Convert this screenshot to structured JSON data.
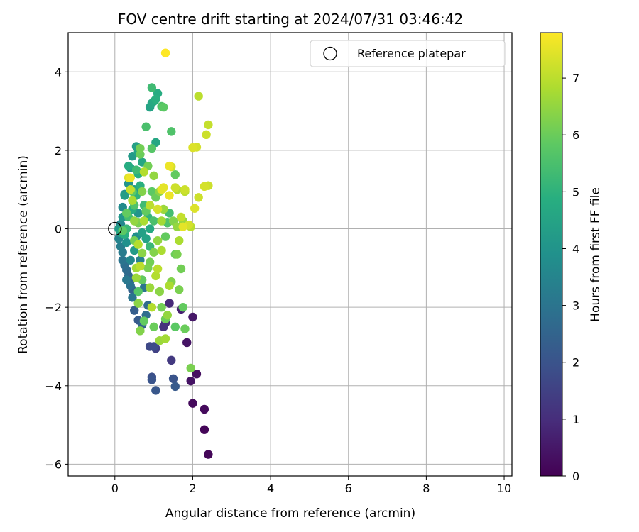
{
  "chart_data": {
    "type": "scatter",
    "title": "FOV centre drift starting at 2024/07/31 03:46:42",
    "xlabel": "Angular distance from reference (arcmin)",
    "ylabel": "Rotation from reference (arcmin)",
    "colorbar_label": "Hours from first FF file",
    "xlim": [
      -1.2,
      10.2
    ],
    "ylim": [
      -6.3,
      5.0
    ],
    "clim": [
      0,
      7.8
    ],
    "xticks": [
      0,
      2,
      4,
      6,
      8,
      10
    ],
    "yticks": [
      -6,
      -4,
      -2,
      0,
      2,
      4
    ],
    "cticks": [
      0,
      1,
      2,
      3,
      4,
      5,
      6,
      7
    ],
    "grid": true,
    "colormap": "viridis",
    "legend": {
      "position": "top-right",
      "label": "Reference platepar"
    },
    "reference": {
      "x": 0,
      "y": 0
    },
    "points": [
      {
        "x": 2.4,
        "y": -5.75,
        "t": 0.1
      },
      {
        "x": 2.3,
        "y": -5.12,
        "t": 0.1
      },
      {
        "x": 2.3,
        "y": -4.6,
        "t": 0.2
      },
      {
        "x": 2.0,
        "y": -4.45,
        "t": 0.2
      },
      {
        "x": 2.1,
        "y": -3.7,
        "t": 0.3
      },
      {
        "x": 1.95,
        "y": -3.88,
        "t": 0.4
      },
      {
        "x": 1.85,
        "y": -2.9,
        "t": 0.4
      },
      {
        "x": 2.0,
        "y": -2.25,
        "t": 0.5
      },
      {
        "x": 1.7,
        "y": -2.05,
        "t": 0.7
      },
      {
        "x": 1.4,
        "y": -1.9,
        "t": 0.9
      },
      {
        "x": 1.3,
        "y": -2.4,
        "t": 1.0
      },
      {
        "x": 1.25,
        "y": -2.5,
        "t": 1.1
      },
      {
        "x": 1.45,
        "y": -3.35,
        "t": 1.3
      },
      {
        "x": 1.05,
        "y": -3.05,
        "t": 1.5
      },
      {
        "x": 0.9,
        "y": -3.0,
        "t": 1.7
      },
      {
        "x": 1.0,
        "y": -3.0,
        "t": 1.8
      },
      {
        "x": 0.95,
        "y": -3.78,
        "t": 1.9
      },
      {
        "x": 0.95,
        "y": -3.85,
        "t": 2.0
      },
      {
        "x": 1.05,
        "y": -4.12,
        "t": 2.1
      },
      {
        "x": 1.5,
        "y": -3.82,
        "t": 2.0
      },
      {
        "x": 1.55,
        "y": -4.02,
        "t": 2.2
      },
      {
        "x": 0.6,
        "y": -2.33,
        "t": 2.2
      },
      {
        "x": 0.5,
        "y": -2.08,
        "t": 2.3
      },
      {
        "x": 0.45,
        "y": -1.55,
        "t": 2.4
      },
      {
        "x": 0.4,
        "y": -1.32,
        "t": 2.5
      },
      {
        "x": 0.35,
        "y": -1.2,
        "t": 2.6
      },
      {
        "x": 0.3,
        "y": -1.05,
        "t": 2.7
      },
      {
        "x": 0.25,
        "y": -0.92,
        "t": 2.8
      },
      {
        "x": 0.2,
        "y": -0.8,
        "t": 3.0
      },
      {
        "x": 0.2,
        "y": -0.6,
        "t": 3.2
      },
      {
        "x": 0.15,
        "y": -0.45,
        "t": 3.3
      },
      {
        "x": 0.1,
        "y": -0.25,
        "t": 3.5
      },
      {
        "x": 0.15,
        "y": 0.12,
        "t": 3.6
      },
      {
        "x": 0.2,
        "y": 0.55,
        "t": 3.7
      },
      {
        "x": 0.25,
        "y": 0.88,
        "t": 3.9
      },
      {
        "x": 0.35,
        "y": 1.15,
        "t": 4.0
      },
      {
        "x": 0.4,
        "y": 1.55,
        "t": 4.1
      },
      {
        "x": 0.45,
        "y": 1.85,
        "t": 4.2
      },
      {
        "x": 0.55,
        "y": 2.1,
        "t": 4.4
      },
      {
        "x": 0.6,
        "y": 1.95,
        "t": 4.5
      },
      {
        "x": 0.7,
        "y": 1.7,
        "t": 4.6
      },
      {
        "x": 0.5,
        "y": 1.0,
        "t": 4.3
      },
      {
        "x": 0.6,
        "y": 0.4,
        "t": 4.0
      },
      {
        "x": 0.55,
        "y": -0.2,
        "t": 3.8
      },
      {
        "x": 0.65,
        "y": -0.8,
        "t": 3.4
      },
      {
        "x": 0.75,
        "y": -1.5,
        "t": 3.0
      },
      {
        "x": 0.85,
        "y": -1.95,
        "t": 2.7
      },
      {
        "x": 0.7,
        "y": -2.45,
        "t": 2.5
      },
      {
        "x": 0.8,
        "y": -2.2,
        "t": 2.8
      },
      {
        "x": 0.9,
        "y": 3.1,
        "t": 4.5
      },
      {
        "x": 0.95,
        "y": 3.2,
        "t": 4.6
      },
      {
        "x": 1.0,
        "y": 3.25,
        "t": 4.7
      },
      {
        "x": 1.1,
        "y": 3.45,
        "t": 4.8
      },
      {
        "x": 1.05,
        "y": 3.3,
        "t": 4.9
      },
      {
        "x": 0.95,
        "y": 3.6,
        "t": 5.3
      },
      {
        "x": 1.2,
        "y": 3.12,
        "t": 5.6
      },
      {
        "x": 1.25,
        "y": 3.1,
        "t": 5.8
      },
      {
        "x": 0.8,
        "y": 2.6,
        "t": 5.5
      },
      {
        "x": 1.05,
        "y": 2.2,
        "t": 4.6
      },
      {
        "x": 0.95,
        "y": 2.05,
        "t": 5.7
      },
      {
        "x": 0.65,
        "y": 2.05,
        "t": 6.1
      },
      {
        "x": 0.65,
        "y": 1.9,
        "t": 6.0
      },
      {
        "x": 0.85,
        "y": 1.6,
        "t": 6.1
      },
      {
        "x": 1.45,
        "y": 2.48,
        "t": 5.6
      },
      {
        "x": 1.55,
        "y": 1.38,
        "t": 5.9
      },
      {
        "x": 1.4,
        "y": 0.4,
        "t": 5.4
      },
      {
        "x": 1.35,
        "y": 0.15,
        "t": 5.6
      },
      {
        "x": 1.3,
        "y": -0.2,
        "t": 5.9
      },
      {
        "x": 1.55,
        "y": -0.65,
        "t": 6.0
      },
      {
        "x": 1.6,
        "y": -0.65,
        "t": 6.2
      },
      {
        "x": 1.7,
        "y": -1.02,
        "t": 6.1
      },
      {
        "x": 1.65,
        "y": -1.55,
        "t": 6.2
      },
      {
        "x": 1.75,
        "y": -2.0,
        "t": 5.9
      },
      {
        "x": 1.55,
        "y": -2.5,
        "t": 5.8
      },
      {
        "x": 1.8,
        "y": -2.55,
        "t": 6.0
      },
      {
        "x": 1.95,
        "y": -3.55,
        "t": 6.2
      },
      {
        "x": 1.35,
        "y": -2.2,
        "t": 6.5
      },
      {
        "x": 1.3,
        "y": -2.8,
        "t": 6.7
      },
      {
        "x": 1.4,
        "y": -1.45,
        "t": 6.8
      },
      {
        "x": 1.1,
        "y": -1.02,
        "t": 7.0
      },
      {
        "x": 0.9,
        "y": -1.5,
        "t": 6.6
      },
      {
        "x": 0.95,
        "y": -2.0,
        "t": 6.9
      },
      {
        "x": 0.6,
        "y": -1.9,
        "t": 6.4
      },
      {
        "x": 0.55,
        "y": -1.0,
        "t": 6.7
      },
      {
        "x": 0.7,
        "y": -0.62,
        "t": 6.4
      },
      {
        "x": 0.6,
        "y": -0.4,
        "t": 6.9
      },
      {
        "x": 0.5,
        "y": 0.2,
        "t": 6.5
      },
      {
        "x": 0.45,
        "y": 0.72,
        "t": 6.8
      },
      {
        "x": 0.4,
        "y": 1.0,
        "t": 7.1
      },
      {
        "x": 0.4,
        "y": 1.3,
        "t": 7.6
      },
      {
        "x": 0.35,
        "y": 1.3,
        "t": 7.4
      },
      {
        "x": 0.75,
        "y": 1.45,
        "t": 6.9
      },
      {
        "x": 1.0,
        "y": 1.35,
        "t": 6.5
      },
      {
        "x": 1.1,
        "y": 0.5,
        "t": 7.3
      },
      {
        "x": 1.25,
        "y": 1.05,
        "t": 7.5
      },
      {
        "x": 1.4,
        "y": 0.85,
        "t": 7.6
      },
      {
        "x": 1.55,
        "y": 1.05,
        "t": 7.2
      },
      {
        "x": 1.7,
        "y": 0.3,
        "t": 7.1
      },
      {
        "x": 1.75,
        "y": 0.05,
        "t": 7.5
      },
      {
        "x": 1.9,
        "y": 0.1,
        "t": 7.3
      },
      {
        "x": 1.95,
        "y": 0.05,
        "t": 7.0
      },
      {
        "x": 1.8,
        "y": 1.0,
        "t": 7.2
      },
      {
        "x": 2.0,
        "y": 2.07,
        "t": 7.4
      },
      {
        "x": 2.1,
        "y": 2.08,
        "t": 7.3
      },
      {
        "x": 2.05,
        "y": 0.52,
        "t": 7.4
      },
      {
        "x": 2.15,
        "y": 0.8,
        "t": 7.2
      },
      {
        "x": 2.3,
        "y": 1.08,
        "t": 7.3
      },
      {
        "x": 2.4,
        "y": 1.1,
        "t": 7.2
      },
      {
        "x": 2.35,
        "y": 2.4,
        "t": 7.2
      },
      {
        "x": 2.4,
        "y": 2.65,
        "t": 7.1
      },
      {
        "x": 2.15,
        "y": 3.38,
        "t": 7.0
      },
      {
        "x": 1.3,
        "y": 4.48,
        "t": 7.8
      },
      {
        "x": 1.4,
        "y": 1.6,
        "t": 7.6
      },
      {
        "x": 1.45,
        "y": 1.58,
        "t": 7.3
      },
      {
        "x": 0.3,
        "y": 0.0,
        "t": 5.2
      },
      {
        "x": 0.35,
        "y": 0.3,
        "t": 5.4
      },
      {
        "x": 0.45,
        "y": 0.5,
        "t": 4.8
      },
      {
        "x": 0.55,
        "y": 0.85,
        "t": 5.0
      },
      {
        "x": 0.65,
        "y": 1.1,
        "t": 4.9
      },
      {
        "x": 0.75,
        "y": 0.6,
        "t": 5.3
      },
      {
        "x": 0.85,
        "y": 0.3,
        "t": 5.1
      },
      {
        "x": 0.9,
        "y": 0.0,
        "t": 4.7
      },
      {
        "x": 0.8,
        "y": -0.25,
        "t": 4.5
      },
      {
        "x": 0.7,
        "y": -0.1,
        "t": 4.4
      },
      {
        "x": 0.5,
        "y": -0.55,
        "t": 4.2
      },
      {
        "x": 0.4,
        "y": -0.8,
        "t": 3.6
      },
      {
        "x": 0.3,
        "y": -0.35,
        "t": 3.9
      },
      {
        "x": 0.2,
        "y": 0.3,
        "t": 4.1
      },
      {
        "x": 0.25,
        "y": 0.85,
        "t": 4.3
      },
      {
        "x": 0.3,
        "y": -1.3,
        "t": 3.1
      },
      {
        "x": 0.4,
        "y": -1.45,
        "t": 2.9
      },
      {
        "x": 0.45,
        "y": -1.75,
        "t": 3.0
      },
      {
        "x": 0.6,
        "y": -1.6,
        "t": 5.7
      },
      {
        "x": 0.7,
        "y": -1.3,
        "t": 5.9
      },
      {
        "x": 0.85,
        "y": -1.0,
        "t": 6.2
      },
      {
        "x": 1.0,
        "y": -0.6,
        "t": 6.3
      },
      {
        "x": 1.1,
        "y": -0.3,
        "t": 6.5
      },
      {
        "x": 1.2,
        "y": 0.2,
        "t": 6.7
      },
      {
        "x": 1.05,
        "y": 0.8,
        "t": 6.0
      },
      {
        "x": 0.95,
        "y": 0.95,
        "t": 5.8
      },
      {
        "x": 1.15,
        "y": 0.95,
        "t": 6.4
      },
      {
        "x": 1.25,
        "y": 0.5,
        "t": 6.6
      },
      {
        "x": 1.5,
        "y": 0.2,
        "t": 6.3
      },
      {
        "x": 1.6,
        "y": 0.05,
        "t": 6.5
      },
      {
        "x": 1.2,
        "y": -0.55,
        "t": 6.8
      },
      {
        "x": 1.05,
        "y": -1.2,
        "t": 6.9
      },
      {
        "x": 1.15,
        "y": -1.6,
        "t": 6.4
      },
      {
        "x": 1.2,
        "y": -2.0,
        "t": 6.1
      },
      {
        "x": 1.0,
        "y": -2.5,
        "t": 6.0
      },
      {
        "x": 0.75,
        "y": -2.35,
        "t": 5.9
      },
      {
        "x": 0.65,
        "y": -2.6,
        "t": 6.3
      },
      {
        "x": 0.55,
        "y": -1.25,
        "t": 6.6
      },
      {
        "x": 0.6,
        "y": 0.15,
        "t": 6.2
      },
      {
        "x": 0.8,
        "y": 0.45,
        "t": 5.9
      },
      {
        "x": 1.0,
        "y": 0.2,
        "t": 5.5
      },
      {
        "x": 0.9,
        "y": -0.45,
        "t": 5.2
      },
      {
        "x": 0.5,
        "y": 0.6,
        "t": 5.6
      },
      {
        "x": 0.45,
        "y": 0.95,
        "t": 5.8
      },
      {
        "x": 0.55,
        "y": 1.5,
        "t": 5.3
      },
      {
        "x": 0.35,
        "y": 1.6,
        "t": 4.8
      },
      {
        "x": 0.6,
        "y": 1.4,
        "t": 4.9
      },
      {
        "x": 0.7,
        "y": 0.95,
        "t": 6.3
      },
      {
        "x": 1.15,
        "y": -2.85,
        "t": 6.6
      },
      {
        "x": 1.3,
        "y": -2.3,
        "t": 6.0
      },
      {
        "x": 1.45,
        "y": -1.35,
        "t": 6.3
      },
      {
        "x": 1.65,
        "y": -0.3,
        "t": 6.8
      },
      {
        "x": 1.75,
        "y": 0.2,
        "t": 6.6
      },
      {
        "x": 1.8,
        "y": 0.95,
        "t": 7.0
      },
      {
        "x": 1.6,
        "y": 1.0,
        "t": 6.9
      },
      {
        "x": 1.2,
        "y": 1.0,
        "t": 7.5
      },
      {
        "x": 0.9,
        "y": 0.6,
        "t": 7.0
      },
      {
        "x": 0.75,
        "y": 0.2,
        "t": 6.8
      },
      {
        "x": 0.65,
        "y": -0.95,
        "t": 7.0
      },
      {
        "x": 0.9,
        "y": -0.85,
        "t": 6.1
      },
      {
        "x": 0.1,
        "y": 0.0,
        "t": 4.2
      },
      {
        "x": 0.15,
        "y": -0.1,
        "t": 4.6
      },
      {
        "x": 0.25,
        "y": -0.15,
        "t": 4.9
      },
      {
        "x": 0.2,
        "y": -0.05,
        "t": 5.8
      },
      {
        "x": 0.3,
        "y": 0.4,
        "t": 5.9
      },
      {
        "x": 0.5,
        "y": -0.3,
        "t": 6.1
      }
    ]
  }
}
